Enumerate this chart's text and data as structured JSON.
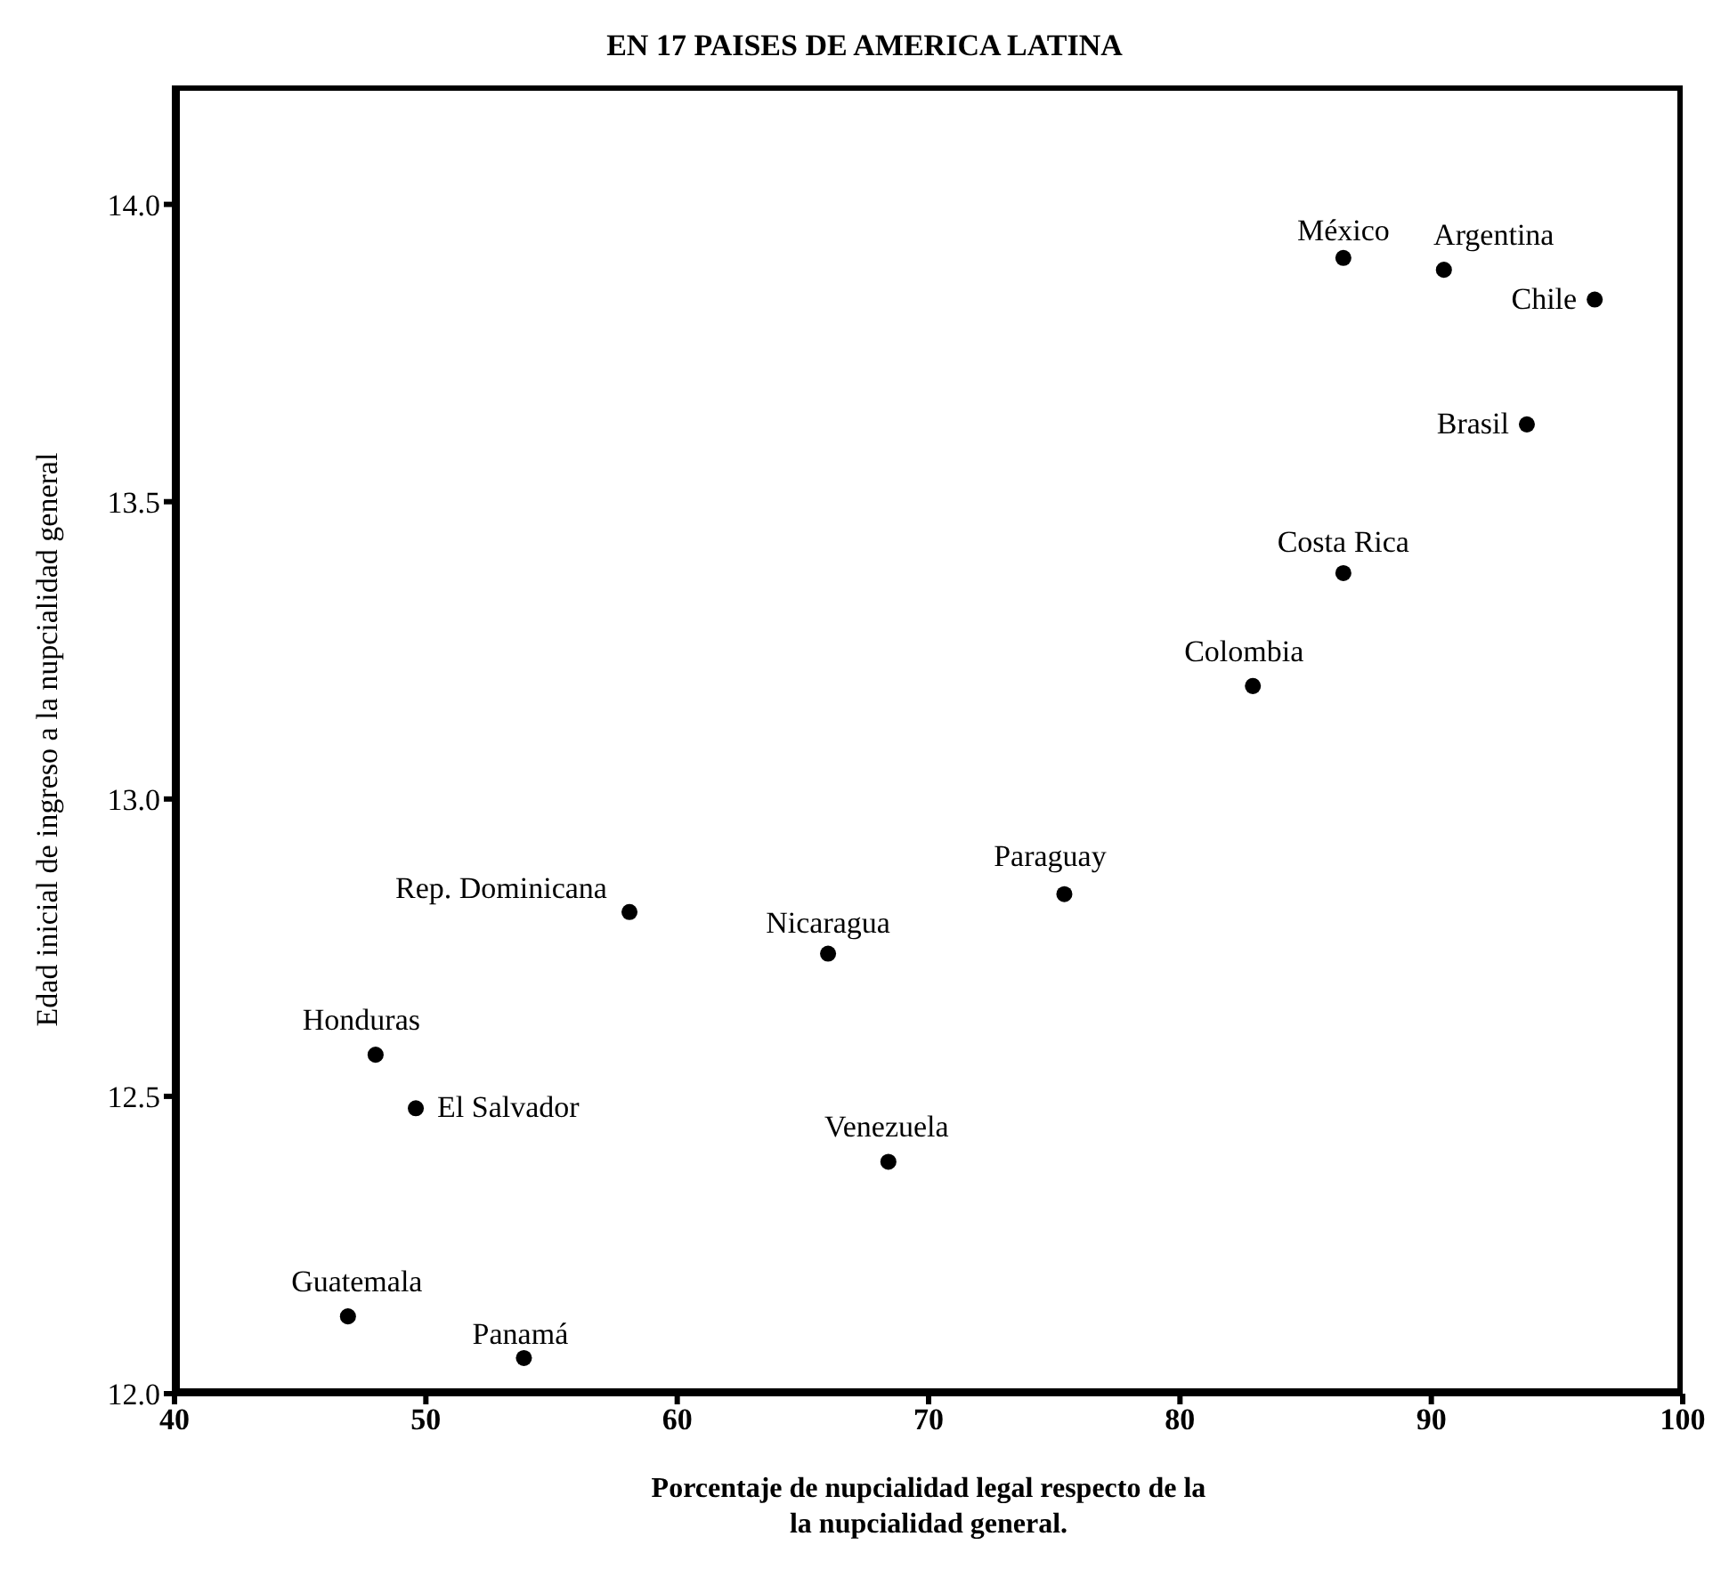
{
  "chart_data": {
    "type": "scatter",
    "title": "EN 17 PAISES DE AMERICA LATINA",
    "xlabel": "Porcentaje de nupcialidad legal respecto de la\nla nupcialidad general.",
    "ylabel": "Edad inicial de ingreso a la nupcialidad general",
    "x": [
      86.5,
      90.5,
      96.5,
      93.8,
      86.5,
      82.9,
      75.4,
      58.1,
      66.0,
      48.0,
      49.6,
      68.4,
      46.9,
      53.9
    ],
    "values": [
      13.91,
      13.89,
      13.84,
      13.63,
      13.38,
      13.19,
      12.84,
      12.81,
      12.74,
      12.57,
      12.48,
      12.39,
      12.13,
      12.06
    ],
    "color": "#000000",
    "marker": "circle",
    "grid": false,
    "legend": false,
    "xlim": [
      40,
      100
    ],
    "xticks": [
      40,
      50,
      60,
      70,
      80,
      90,
      100
    ],
    "ylim": [
      12.0,
      14.2
    ],
    "yticks": [
      {
        "value": 12.0,
        "label": "12.0"
      },
      {
        "value": 12.5,
        "label": "12.5"
      },
      {
        "value": 13.0,
        "label": "13.0"
      },
      {
        "value": 13.5,
        "label": "13.5"
      },
      {
        "value": 14.0,
        "label": "14.0"
      }
    ],
    "annotations": [
      {
        "text": "México",
        "x": 86.5,
        "y": 13.91
      },
      {
        "text": "Argentina",
        "x": 90.5,
        "y": 13.89
      },
      {
        "text": "Chile",
        "x": 96.5,
        "y": 13.84
      },
      {
        "text": "Brasil",
        "x": 93.8,
        "y": 13.63
      },
      {
        "text": "Costa Rica",
        "x": 86.5,
        "y": 13.38
      },
      {
        "text": "Colombia",
        "x": 82.9,
        "y": 13.19
      },
      {
        "text": "Paraguay",
        "x": 75.4,
        "y": 12.84
      },
      {
        "text": "Rep. Dominicana",
        "x": 58.1,
        "y": 12.81
      },
      {
        "text": "Nicaragua",
        "x": 66.0,
        "y": 12.74
      },
      {
        "text": "Honduras",
        "x": 48.0,
        "y": 12.57
      },
      {
        "text": "El Salvador",
        "x": 49.6,
        "y": 12.48
      },
      {
        "text": "Venezuela",
        "x": 68.4,
        "y": 12.39
      },
      {
        "text": "Guatemala",
        "x": 46.9,
        "y": 12.13
      },
      {
        "text": "Panamá",
        "x": 53.9,
        "y": 12.06
      }
    ]
  }
}
